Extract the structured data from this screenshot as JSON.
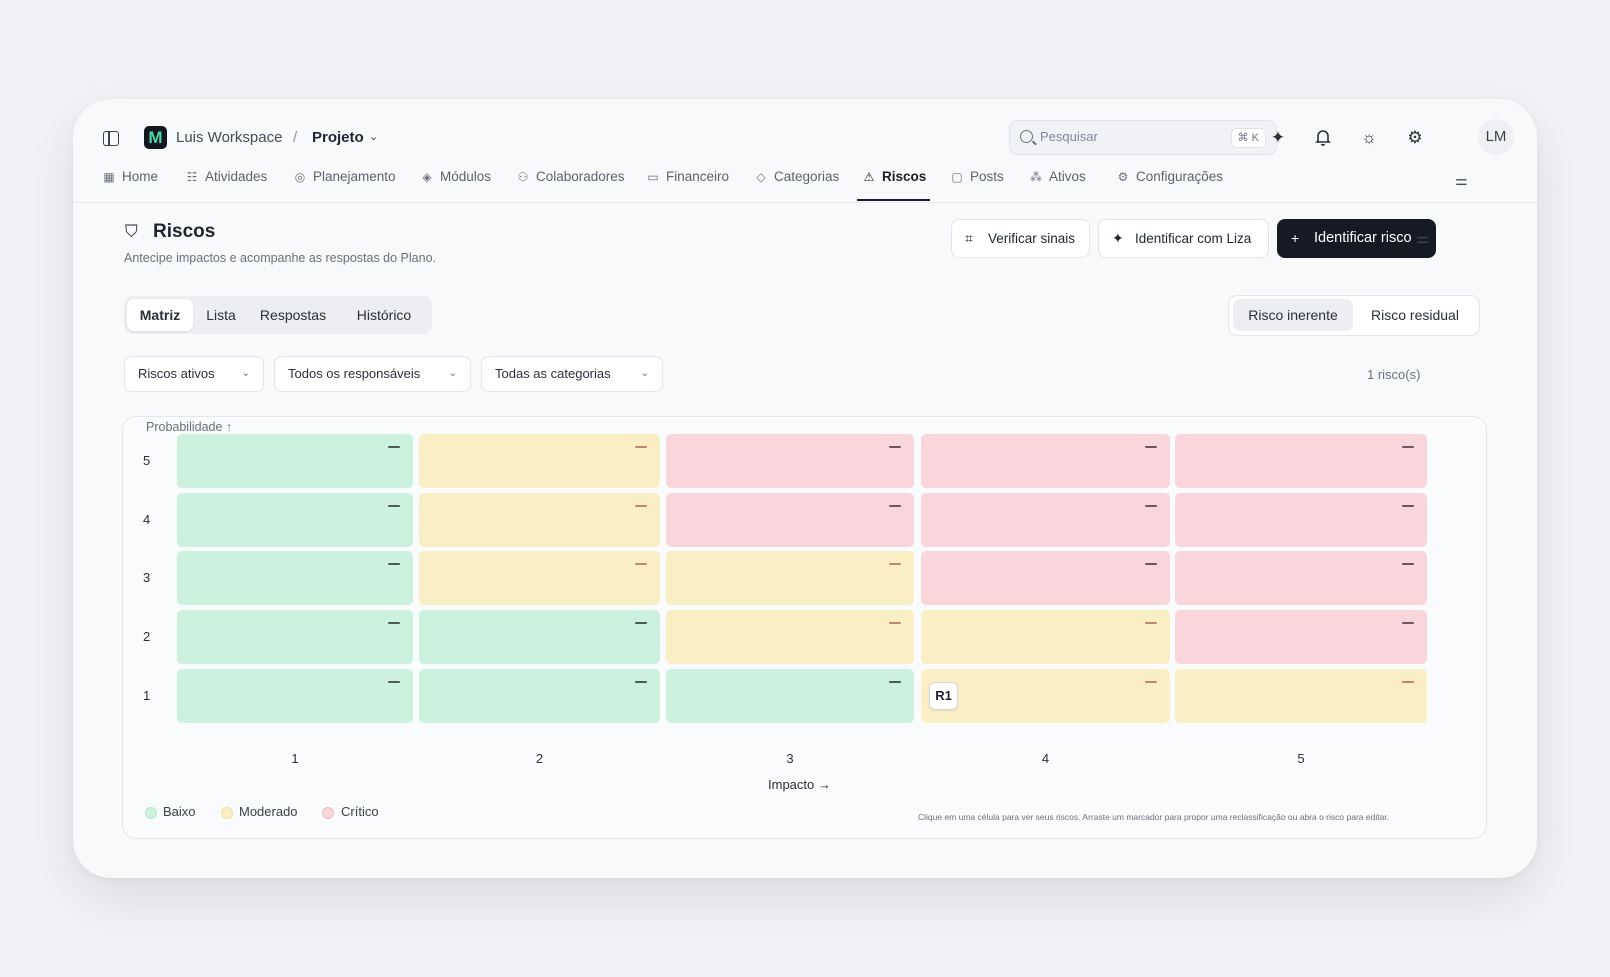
{
  "topbar": {
    "workspace": "Luis Workspace",
    "separator": "/",
    "project": "Projeto",
    "search_placeholder": "Pesquisar",
    "search_shortcut": "⌘ K",
    "avatar_initials": "LM",
    "logo_letter": "M"
  },
  "nav": {
    "items": [
      "Home",
      "Atividades",
      "Planejamento",
      "Módulos",
      "Colaboradores",
      "Financeiro",
      "Categorias",
      "Riscos",
      "Posts",
      "Ativos",
      "Configurações"
    ],
    "active": "Riscos"
  },
  "header": {
    "title": "Riscos",
    "subtitle": "Antecipe impactos e acompanhe as respostas do Plano.",
    "btn_verify": "Verificar sinais",
    "btn_liza": "Identificar com Liza",
    "btn_identify": "Identificar risco"
  },
  "view_tabs": [
    "Matriz",
    "Lista",
    "Respostas",
    "Histórico"
  ],
  "risk_mode": [
    "Risco inerente",
    "Risco residual"
  ],
  "filters": [
    "Riscos ativos",
    "Todos os responsáveis",
    "Todas as categorias"
  ],
  "count": "1 risco(s)",
  "matrix": {
    "y_label": "Probabilidade ↑",
    "x_label": "Impacto →",
    "rows": [
      "5",
      "4",
      "3",
      "2",
      "1"
    ],
    "cols": [
      "1",
      "2",
      "3",
      "4",
      "5"
    ],
    "levels": [
      [
        "low",
        "mod",
        "crit",
        "crit",
        "crit"
      ],
      [
        "low",
        "mod",
        "crit",
        "crit",
        "crit"
      ],
      [
        "low",
        "mod",
        "mod",
        "crit",
        "crit"
      ],
      [
        "low",
        "low",
        "mod",
        "mod",
        "crit"
      ],
      [
        "low",
        "low",
        "low",
        "mod",
        "mod"
      ]
    ],
    "markers": [
      {
        "probability": 1,
        "impact": 4,
        "label": "R1"
      }
    ],
    "legend": [
      {
        "label": "Baixo",
        "color": "#cdf1df"
      },
      {
        "label": "Moderado",
        "color": "#faefc4"
      },
      {
        "label": "Crítico",
        "color": "#f9d6dc"
      }
    ],
    "hint": "Clique em uma célula para ver seus riscos. Arraste um marcador para propor uma reclassificação ou abra o risco para editar."
  }
}
